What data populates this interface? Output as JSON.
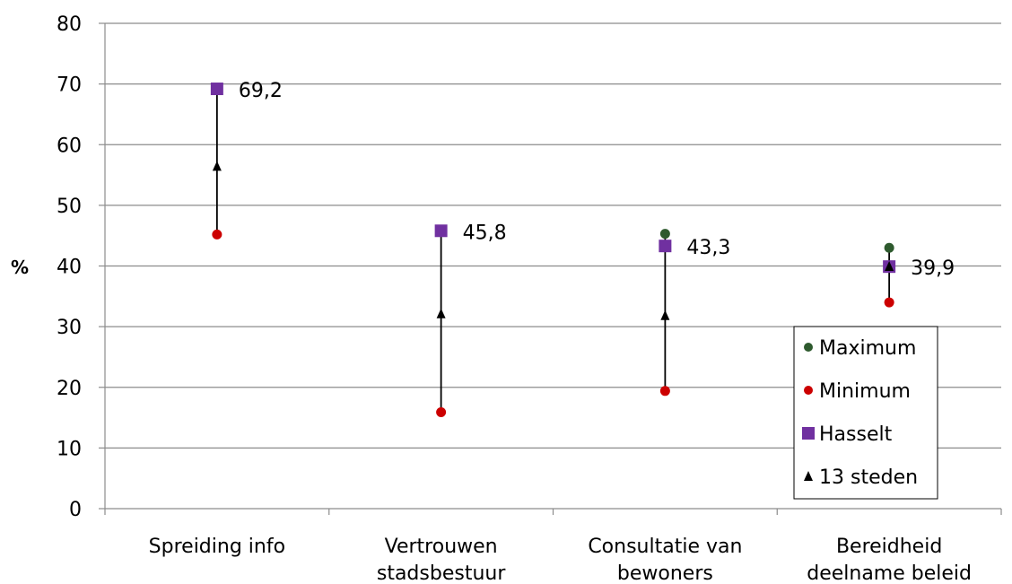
{
  "chart_data": {
    "type": "scatter",
    "title": "",
    "xlabel": "",
    "ylabel": "%",
    "ylim": [
      0,
      80
    ],
    "yticks": [
      0,
      10,
      20,
      30,
      40,
      50,
      60,
      70,
      80
    ],
    "grid": true,
    "legend_position": "bottom-right",
    "categories": [
      [
        "Spreiding info"
      ],
      [
        "Vertrouwen",
        "stadsbestuur"
      ],
      [
        "Consultatie van",
        "bewoners"
      ],
      [
        "Bereidheid",
        "deelname beleid"
      ]
    ],
    "series": [
      {
        "name": "Maximum",
        "marker": "circle",
        "color": "#2e5a2e",
        "values": [
          69.2,
          45.8,
          45.3,
          43.0
        ]
      },
      {
        "name": "Minimum",
        "marker": "circle",
        "color": "#cc0000",
        "values": [
          45.2,
          15.9,
          19.4,
          34.0
        ]
      },
      {
        "name": "Hasselt",
        "marker": "square",
        "color": "#7030a0",
        "values": [
          69.2,
          45.8,
          43.3,
          39.9
        ]
      },
      {
        "name": "13 steden",
        "marker": "triangle",
        "color": "#000000",
        "values": [
          56.5,
          32.2,
          31.9,
          40.0
        ]
      }
    ],
    "data_labels": [
      "69,2",
      "45,8",
      "43,3",
      "39,9"
    ]
  }
}
